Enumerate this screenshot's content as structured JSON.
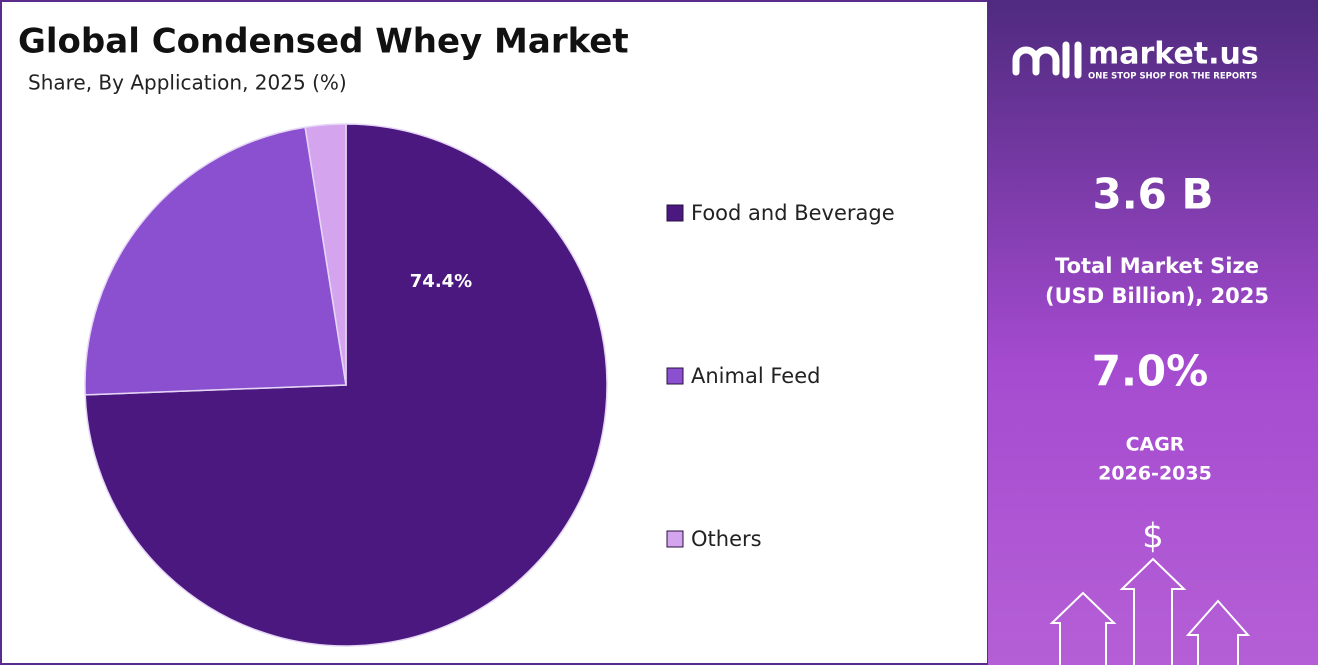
{
  "chart_data": {
    "type": "pie",
    "title": "Global Condensed Whey Market",
    "subtitle": "Share, By Application, 2025 (%)",
    "categories": [
      "Food and Beverage",
      "Animal Feed",
      "Others"
    ],
    "values": [
      74.4,
      23.1,
      2.5
    ],
    "value_labels": [
      "74.4%",
      null,
      null
    ],
    "colors": [
      "#4b1880",
      "#8a50cf",
      "#d5a4ef"
    ],
    "legend": "right"
  },
  "sidebar": {
    "brand": "market.us",
    "tagline": "ONE STOP SHOP FOR THE REPORTS",
    "market_size": "3.6 B",
    "market_size_label": [
      "Total Market Size",
      "(USD Billion), 2025"
    ],
    "cagr": "7.0%",
    "cagr_label": [
      "CAGR",
      "2026-2035"
    ],
    "icon": "$"
  }
}
